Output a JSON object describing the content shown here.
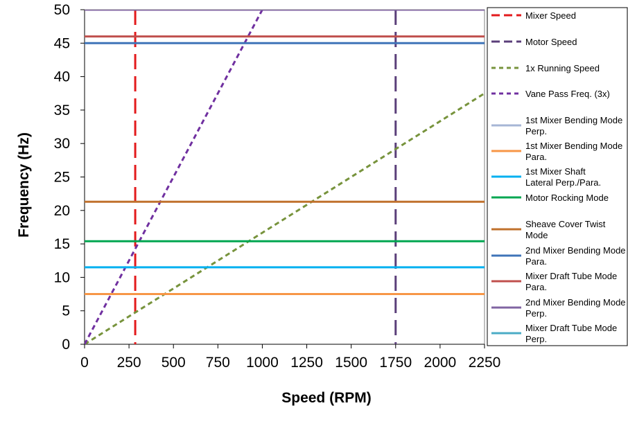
{
  "chart_data": {
    "type": "line",
    "title": "",
    "xlabel": "Speed (RPM)",
    "ylabel": "Frequency (Hz)",
    "xlim": [
      0,
      2250
    ],
    "ylim": [
      0,
      50
    ],
    "xticks": [
      "0",
      "250",
      "500",
      "750",
      "1000",
      "1250",
      "1500",
      "1750",
      "2000",
      "2250"
    ],
    "yticks": [
      "0",
      "5",
      "10",
      "15",
      "20",
      "25",
      "30",
      "35",
      "40",
      "45",
      "50"
    ],
    "grid": false,
    "legend_position": "right",
    "series": [
      {
        "name": "Mixer Speed",
        "kind": "vertical",
        "x": 285,
        "color": "#e31a1c",
        "dash": "long-dash"
      },
      {
        "name": "Motor Speed",
        "kind": "vertical",
        "x": 1750,
        "color": "#5b3f7a",
        "dash": "long-dash"
      },
      {
        "name": "1x Running Speed",
        "kind": "line",
        "points": [
          [
            0,
            0
          ],
          [
            2250,
            37.5
          ]
        ],
        "color": "#77933c",
        "dash": "short-dash"
      },
      {
        "name": "Vane Pass Freq. (3x)",
        "kind": "line",
        "points": [
          [
            0,
            0
          ],
          [
            1000,
            50
          ]
        ],
        "color": "#7030a0",
        "dash": "short-dash"
      },
      {
        "name": "1st Mixer Bending Mode Perp.",
        "kind": "none",
        "color": "#a6b6d6",
        "dash": "solid"
      },
      {
        "name": "1st Mixer Bending Mode Para.",
        "kind": "horizontal",
        "y": 7.5,
        "color": "#f79646",
        "dash": "solid"
      },
      {
        "name": "1st Mixer Shaft Lateral Perp./Para.",
        "kind": "horizontal",
        "y": 11.5,
        "color": "#00b0f0",
        "dash": "solid"
      },
      {
        "name": "Motor Rocking Mode",
        "kind": "horizontal",
        "y": 15.4,
        "color": "#00a651",
        "dash": "solid"
      },
      {
        "name": "Sheave Cover Twist Mode",
        "kind": "horizontal",
        "y": 21.3,
        "color": "#c0712c",
        "dash": "solid"
      },
      {
        "name": "2nd Mixer Bending Mode Para.",
        "kind": "horizontal",
        "y": 45,
        "color": "#3f74b8",
        "dash": "solid"
      },
      {
        "name": "Mixer Draft Tube Mode Para.",
        "kind": "horizontal",
        "y": 46,
        "color": "#c0504d",
        "dash": "solid"
      },
      {
        "name": "2nd Mixer Bending Mode Perp.",
        "kind": "horizontal",
        "y": 50,
        "color": "#8064a2",
        "dash": "solid"
      },
      {
        "name": "Mixer Draft Tube Mode Perp.",
        "kind": "none",
        "color": "#4bacc6",
        "dash": "solid"
      }
    ]
  }
}
